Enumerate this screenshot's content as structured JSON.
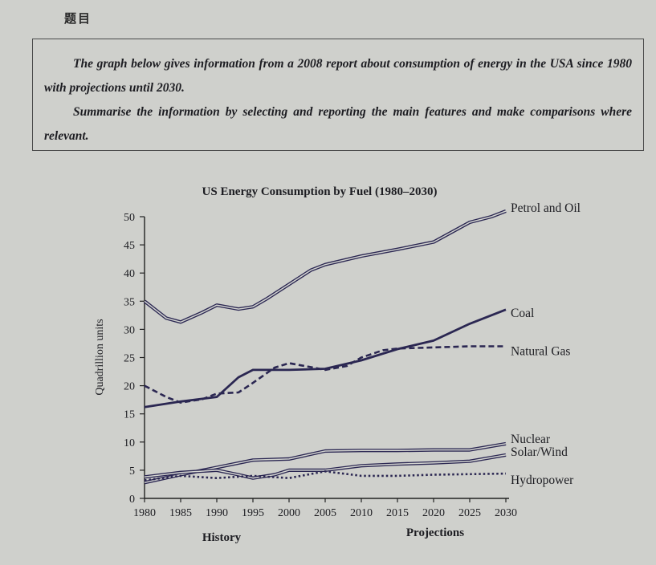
{
  "heading": "题目",
  "task": {
    "line1": "The graph below gives information from a 2008 report about consumption of energy in the USA since 1980 with projections until 2030.",
    "line2": "Summarise the information by selecting and reporting the main features and make comparisons where relevant."
  },
  "chart_data": {
    "type": "line",
    "title": "US Energy Consumption by Fuel (1980–2030)",
    "ylabel": "Quadrillion units",
    "xlabel_history": "History",
    "xlabel_projections": "Projections",
    "ylim": [
      0,
      50
    ],
    "xlim": [
      1980,
      2030
    ],
    "x_ticks": [
      1980,
      1985,
      1990,
      1995,
      2000,
      2005,
      2010,
      2015,
      2020,
      2025,
      2030
    ],
    "y_ticks": [
      0,
      5,
      10,
      15,
      20,
      25,
      30,
      35,
      40,
      45,
      50
    ],
    "series": [
      {
        "name": "Petrol and Oil",
        "style": "double",
        "x": [
          1980,
          1983,
          1985,
          1988,
          1990,
          1993,
          1995,
          1997,
          2000,
          2003,
          2005,
          2010,
          2015,
          2020,
          2025,
          2028,
          2030
        ],
        "y": [
          35,
          32,
          31.3,
          33,
          34.3,
          33.6,
          34,
          35.5,
          38,
          40.5,
          41.5,
          43,
          44.2,
          45.5,
          49,
          50,
          51
        ]
      },
      {
        "name": "Coal",
        "style": "solid",
        "x": [
          1980,
          1985,
          1990,
          1993,
          1995,
          2000,
          2005,
          2010,
          2015,
          2020,
          2025,
          2030
        ],
        "y": [
          16.2,
          17.2,
          18,
          21.5,
          22.8,
          22.8,
          23,
          24.5,
          26.5,
          28,
          31,
          33.5
        ]
      },
      {
        "name": "Natural Gas",
        "style": "dashed",
        "x": [
          1980,
          1983,
          1985,
          1988,
          1990,
          1993,
          1995,
          1998,
          2000,
          2003,
          2005,
          2008,
          2010,
          2013,
          2015,
          2020,
          2025,
          2030
        ],
        "y": [
          20,
          18,
          17,
          17.6,
          18.6,
          18.8,
          20.5,
          23.2,
          24,
          23.3,
          22.8,
          23.5,
          25,
          26.3,
          26.6,
          26.8,
          27,
          27
        ]
      },
      {
        "name": "Nuclear",
        "style": "double",
        "x": [
          1980,
          1985,
          1990,
          1995,
          2000,
          2005,
          2010,
          2015,
          2020,
          2025,
          2030
        ],
        "y": [
          2.8,
          4.2,
          5.5,
          6.8,
          7,
          8.4,
          8.5,
          8.5,
          8.6,
          8.6,
          9.7
        ]
      },
      {
        "name": "Solar/Wind",
        "style": "double",
        "x": [
          1980,
          1985,
          1990,
          1993,
          1995,
          1998,
          2000,
          2005,
          2010,
          2015,
          2020,
          2025,
          2030
        ],
        "y": [
          3.8,
          4.6,
          5,
          4.2,
          3.6,
          4.2,
          5,
          5,
          5.8,
          6.1,
          6.3,
          6.6,
          7.7
        ]
      },
      {
        "name": "Hydropower",
        "style": "dotted",
        "x": [
          1980,
          1985,
          1990,
          1995,
          2000,
          2005,
          2010,
          2015,
          2020,
          2025,
          2030
        ],
        "y": [
          3.2,
          4,
          3.6,
          4,
          3.6,
          4.8,
          4,
          4,
          4.2,
          4.3,
          4.4
        ]
      }
    ]
  }
}
